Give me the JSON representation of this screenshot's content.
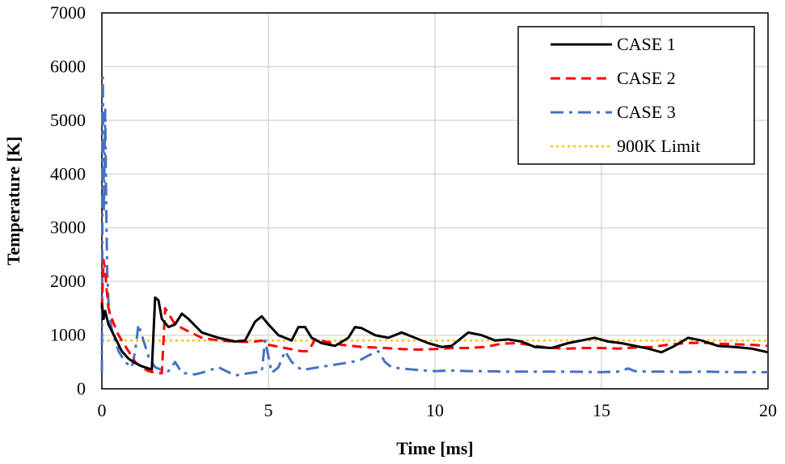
{
  "chart_data": {
    "type": "line",
    "xlabel": "Time [ms]",
    "ylabel": "Temperature [K]",
    "xlim": [
      0,
      20
    ],
    "ylim": [
      0,
      7000
    ],
    "x_ticks": [
      0,
      5,
      10,
      15,
      20
    ],
    "y_ticks": [
      0,
      1000,
      2000,
      3000,
      4000,
      5000,
      6000,
      7000
    ],
    "grid": true,
    "legend_position": "top-right",
    "series": [
      {
        "name": "CASE 1",
        "color": "#000000",
        "style": "solid",
        "x": [
          0,
          0.05,
          0.1,
          0.2,
          0.4,
          0.6,
          0.8,
          1.0,
          1.2,
          1.4,
          1.5,
          1.6,
          1.7,
          1.8,
          2.0,
          2.2,
          2.4,
          2.6,
          3.0,
          3.5,
          4.0,
          4.3,
          4.6,
          4.8,
          5.0,
          5.3,
          5.7,
          5.9,
          6.1,
          6.3,
          6.6,
          7.0,
          7.4,
          7.6,
          7.8,
          8.2,
          8.6,
          9.0,
          9.4,
          9.8,
          10.2,
          10.5,
          10.8,
          11.0,
          11.4,
          11.8,
          12.2,
          12.6,
          13.0,
          13.5,
          14.0,
          14.4,
          14.8,
          15.2,
          15.6,
          16.0,
          16.4,
          16.8,
          17.2,
          17.6,
          18.0,
          18.5,
          19.0,
          19.5,
          20.0
        ],
        "y": [
          1600,
          1300,
          1450,
          1200,
          950,
          700,
          560,
          480,
          420,
          380,
          360,
          1700,
          1650,
          1300,
          1150,
          1200,
          1400,
          1300,
          1050,
          950,
          880,
          900,
          1250,
          1350,
          1200,
          1000,
          900,
          1150,
          1150,
          950,
          850,
          800,
          950,
          1150,
          1130,
          1000,
          950,
          1050,
          950,
          850,
          780,
          800,
          950,
          1050,
          1000,
          900,
          920,
          880,
          780,
          760,
          850,
          900,
          950,
          880,
          850,
          800,
          750,
          680,
          800,
          950,
          900,
          800,
          780,
          750,
          680
        ]
      },
      {
        "name": "CASE 2",
        "color": "#ff0000",
        "style": "dashed",
        "x": [
          0,
          0.05,
          0.1,
          0.15,
          0.2,
          0.3,
          0.5,
          0.8,
          1.0,
          1.2,
          1.4,
          1.6,
          1.8,
          1.9,
          2.0,
          2.2,
          2.5,
          3.0,
          3.5,
          4.0,
          4.5,
          4.8,
          5.0,
          5.5,
          6.0,
          6.2,
          6.4,
          6.8,
          7.2,
          7.8,
          8.5,
          9.0,
          9.5,
          10.0,
          10.5,
          11.0,
          11.5,
          12.0,
          12.5,
          13.0,
          13.5,
          14.0,
          14.5,
          15.0,
          15.5,
          16.0,
          16.5,
          17.0,
          17.5,
          18.0,
          18.5,
          19.0,
          19.5,
          20.0
        ],
        "y": [
          1500,
          2400,
          2200,
          1800,
          1500,
          1300,
          1000,
          700,
          500,
          400,
          330,
          300,
          290,
          1500,
          1400,
          1200,
          1100,
          950,
          900,
          880,
          870,
          900,
          820,
          760,
          700,
          700,
          920,
          870,
          820,
          780,
          760,
          740,
          730,
          740,
          760,
          760,
          780,
          840,
          850,
          800,
          760,
          750,
          760,
          760,
          750,
          770,
          780,
          820,
          850,
          860,
          840,
          830,
          820,
          800
        ]
      },
      {
        "name": "CASE 3",
        "color": "#4472c4",
        "style": "dashdot",
        "x": [
          0,
          0.03,
          0.06,
          0.1,
          0.13,
          0.16,
          0.2,
          0.25,
          0.3,
          0.4,
          0.5,
          0.7,
          0.9,
          1.0,
          1.1,
          1.2,
          1.3,
          1.4,
          1.5,
          1.6,
          1.8,
          2.0,
          2.2,
          2.4,
          2.6,
          2.8,
          3.0,
          3.5,
          4.0,
          4.5,
          4.8,
          4.9,
          5.0,
          5.1,
          5.3,
          5.5,
          5.7,
          6.0,
          6.5,
          7.0,
          7.5,
          7.8,
          8.0,
          8.3,
          8.5,
          8.7,
          9.0,
          9.5,
          10.0,
          10.5,
          11.0,
          11.5,
          12.0,
          13.0,
          14.0,
          15.0,
          15.5,
          15.8,
          16.0,
          16.5,
          17.0,
          17.5,
          18.0,
          19.0,
          20.0
        ],
        "y": [
          300,
          5800,
          3300,
          5200,
          3400,
          2200,
          1600,
          1300,
          1100,
          900,
          700,
          500,
          400,
          700,
          1200,
          1000,
          800,
          600,
          500,
          400,
          350,
          330,
          500,
          300,
          280,
          270,
          300,
          400,
          250,
          300,
          320,
          900,
          600,
          300,
          400,
          700,
          500,
          350,
          400,
          450,
          500,
          550,
          620,
          700,
          500,
          400,
          380,
          350,
          330,
          340,
          330,
          330,
          320,
          320,
          320,
          310,
          320,
          380,
          330,
          320,
          320,
          310,
          320,
          310,
          310
        ]
      },
      {
        "name": "900K Limit",
        "color": "#ffc000",
        "style": "dotted",
        "x": [
          0,
          20
        ],
        "y": [
          900,
          900
        ]
      }
    ]
  }
}
